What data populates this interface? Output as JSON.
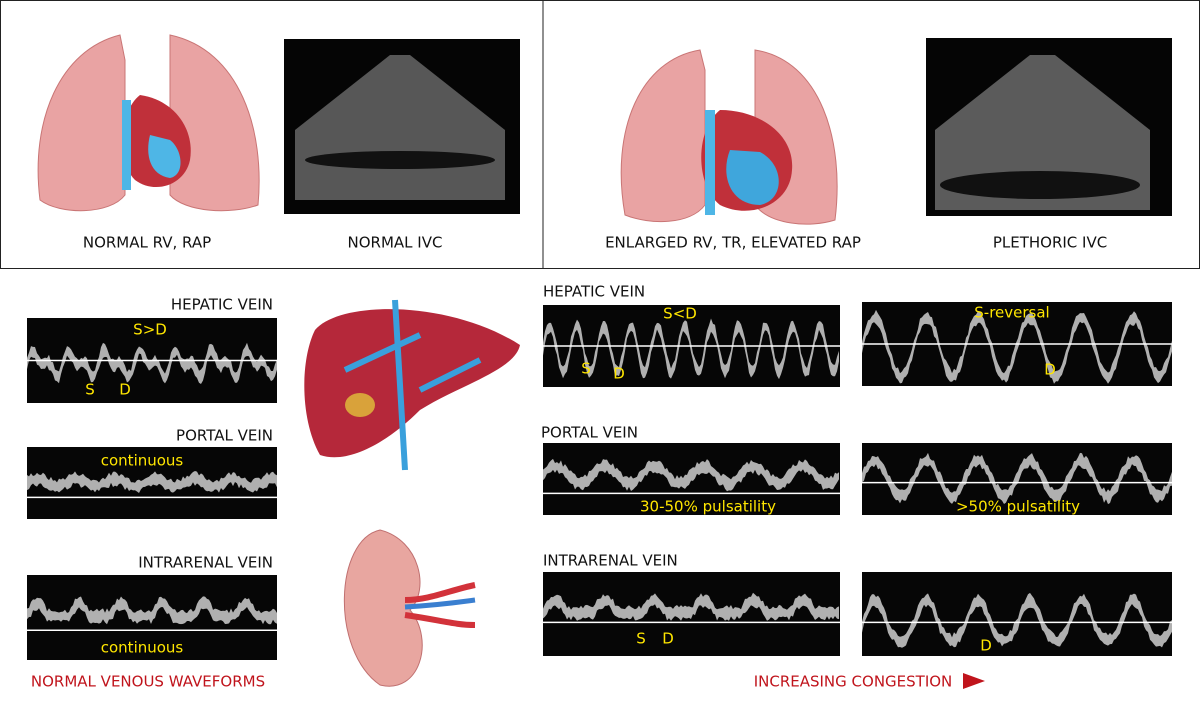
{
  "top": {
    "panels": [
      {
        "heart_label": "NORMAL RV, RAP",
        "ivc_label": "NORMAL IVC"
      },
      {
        "heart_label": "ENLARGED RV, TR, ELEVATED RAP",
        "ivc_label": "PLETHORIC IVC"
      }
    ]
  },
  "normal": {
    "hepatic": {
      "label": "HEPATIC VEIN",
      "note": "S>D",
      "s": "S",
      "d": "D"
    },
    "portal": {
      "label": "PORTAL VEIN",
      "note": "continuous"
    },
    "intrarenal": {
      "label": "INTRARENAL VEIN",
      "note": "continuous"
    },
    "footer": "NORMAL VENOUS WAVEFORMS"
  },
  "congestion": {
    "hepatic": {
      "label": "HEPATIC VEIN",
      "mild_note": "S<D",
      "mild_s": "S",
      "mild_d": "D",
      "severe_note": "S-reversal",
      "severe_d": "D"
    },
    "portal": {
      "label": "PORTAL VEIN",
      "mild_note": "30-50% pulsatility",
      "severe_note": ">50% pulsatility"
    },
    "intrarenal": {
      "label": "INTRARENAL VEIN",
      "mild_s": "S",
      "mild_d": "D",
      "severe_d": "D"
    },
    "footer": "INCREASING CONGESTION"
  }
}
